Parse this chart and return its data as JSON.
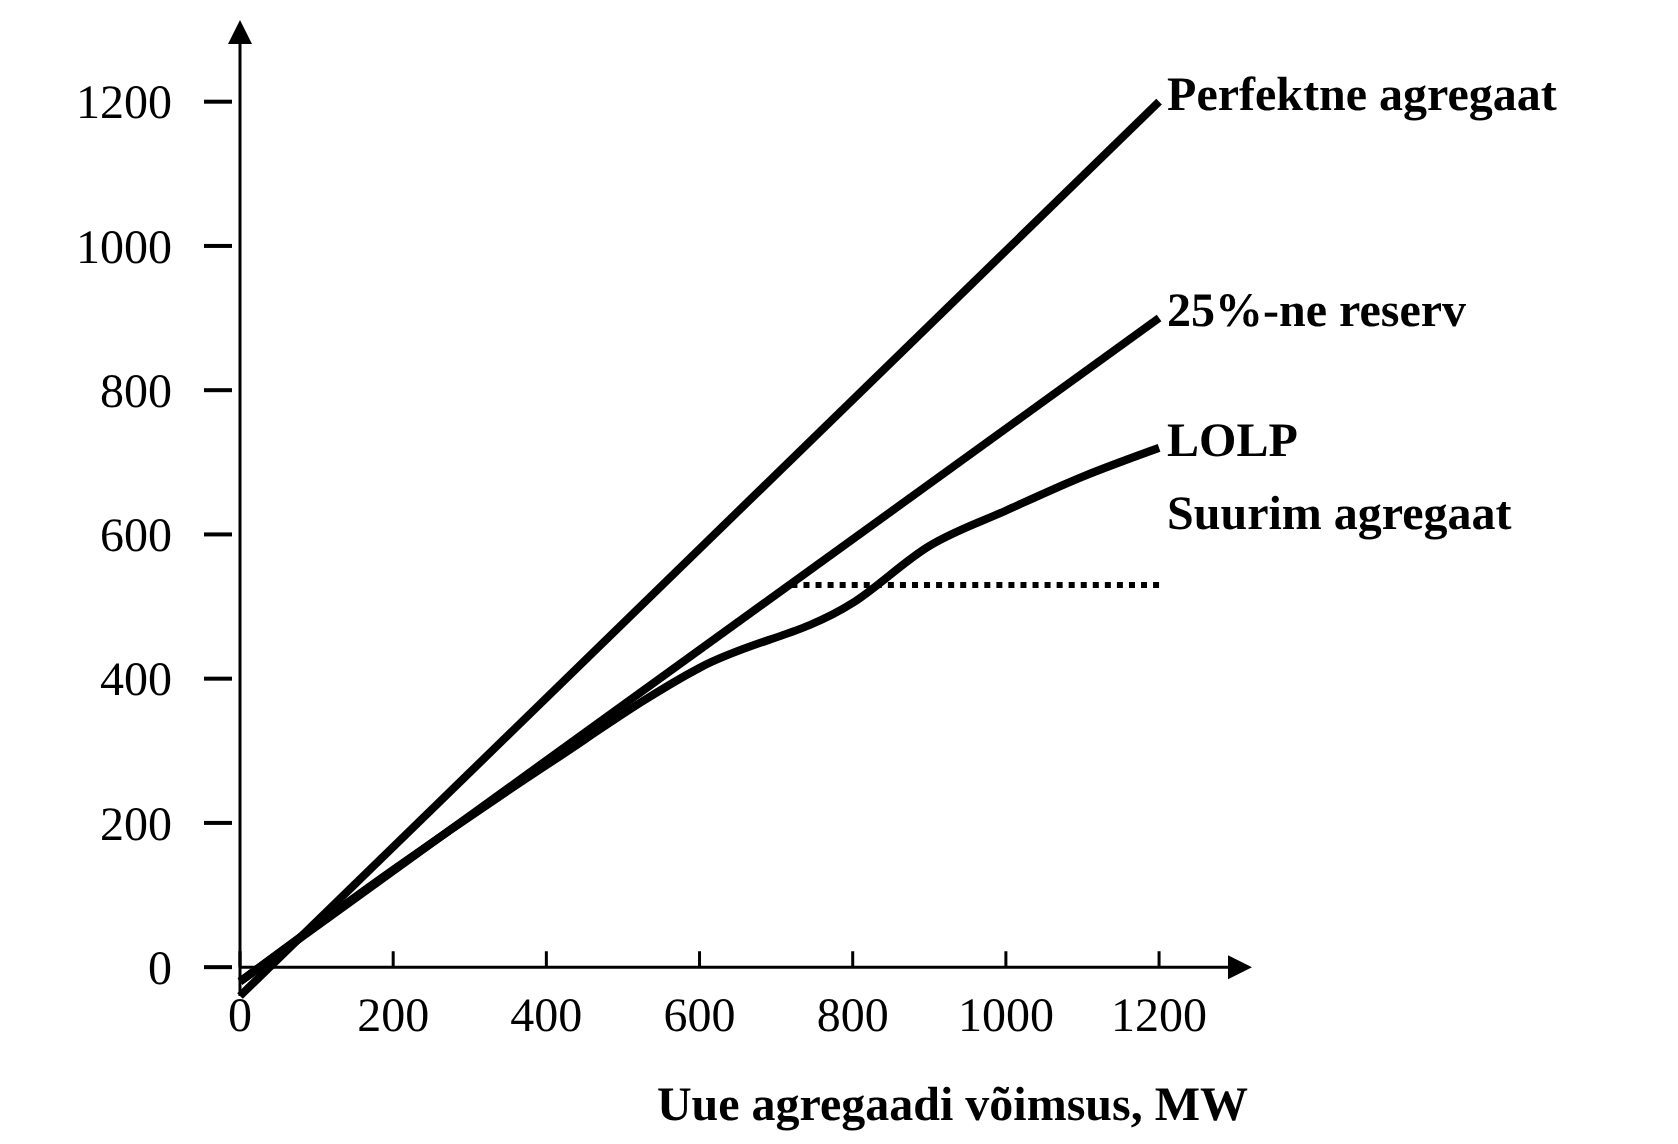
{
  "chart_data": {
    "type": "line",
    "xlabel": "Uue agregaadi võimsus, MW",
    "xlim": [
      0,
      1290
    ],
    "ylim": [
      -40,
      1280
    ],
    "xticks": [
      0,
      200,
      400,
      600,
      800,
      1000,
      1200
    ],
    "yticks": [
      0,
      200,
      400,
      600,
      800,
      1000,
      1200
    ],
    "grid": false,
    "marker": "none",
    "series": [
      {
        "name": "Perfektne agregaat",
        "color": "#000000",
        "x": [
          0,
          1200
        ],
        "values": [
          -40,
          1200
        ]
      },
      {
        "name": "25%-ne reserv",
        "color": "#000000",
        "x": [
          0,
          1200
        ],
        "values": [
          -20,
          900
        ]
      },
      {
        "name": "LOLP",
        "color": "#000000",
        "x": [
          0,
          200,
          400,
          600,
          800,
          900,
          1000,
          1100,
          1200
        ],
        "values": [
          -20,
          135,
          280,
          415,
          505,
          584,
          633,
          680,
          720
        ]
      },
      {
        "name": "Suurim agregaat",
        "color": "#000000",
        "line_style": "dotted",
        "x": [
          720,
          1200
        ],
        "values": [
          530,
          530
        ]
      }
    ]
  }
}
